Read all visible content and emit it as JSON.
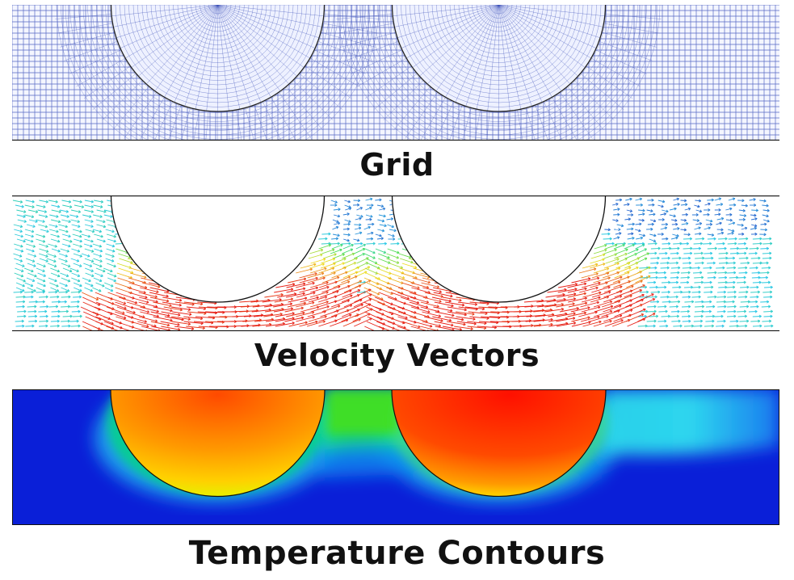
{
  "panels": [
    {
      "id": "grid",
      "caption": "Grid"
    },
    {
      "id": "vectors",
      "caption": "Velocity Vectors"
    },
    {
      "id": "temperature",
      "caption": "Temperature Contours"
    }
  ],
  "colors": {
    "mesh_line": "#3b4fb8",
    "background_blue": "#0a1ed8",
    "hot": "#ff2a00",
    "warm": "#ffb000",
    "cool": "#27d9e6",
    "wall": "#111111"
  }
}
